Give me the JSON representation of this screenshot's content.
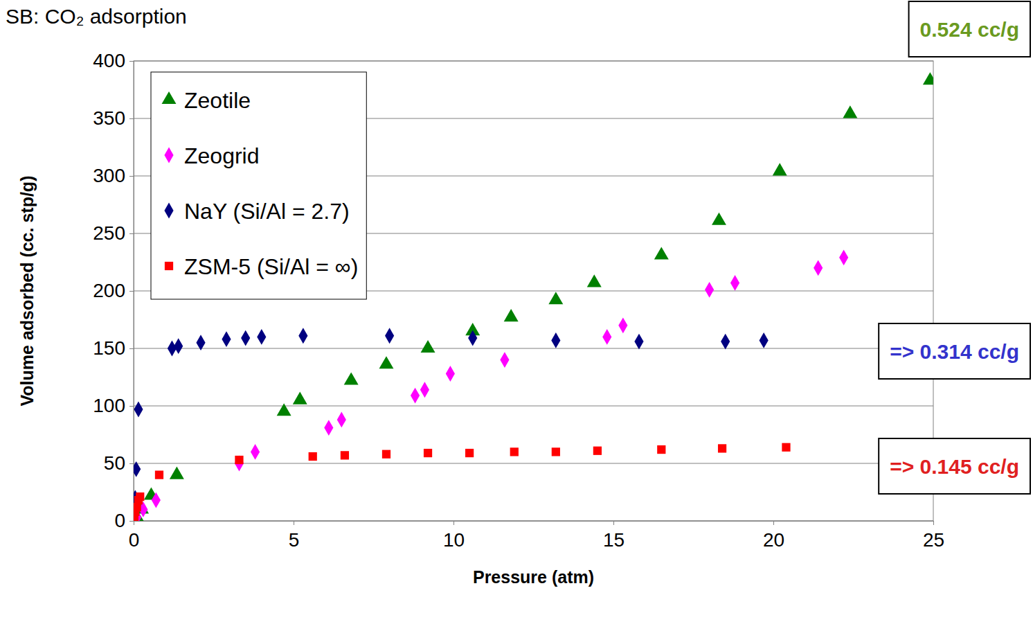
{
  "chart_data": {
    "type": "scatter",
    "title": "SB: CO₂ adsorption",
    "x_label": "Pressure (atm)",
    "y_label": "Volume adsorbed (cc. stp/g)",
    "xlim": [
      0,
      25
    ],
    "xticks": [
      0,
      5,
      10,
      15,
      20,
      25
    ],
    "ylim": [
      0,
      400
    ],
    "yticks": [
      0,
      50,
      100,
      150,
      200,
      250,
      300,
      350,
      400
    ],
    "grid": true,
    "legend": "upper left",
    "series": [
      {
        "name": "Zeotile",
        "color": "#008000",
        "marker": "triangle",
        "x": [
          0.1,
          0.25,
          0.55,
          1.35,
          4.7,
          5.2,
          6.8,
          7.9,
          9.2,
          10.6,
          11.8,
          13.2,
          14.4,
          16.5,
          18.3,
          20.2,
          22.4,
          24.9
        ],
        "values": [
          3,
          10,
          22,
          40,
          95,
          105,
          122,
          136,
          150,
          165,
          177,
          192,
          207,
          231,
          261,
          304,
          354,
          383
        ]
      },
      {
        "name": "Zeogrid",
        "color": "#ff00ff",
        "marker": "diamond",
        "x": [
          0.1,
          0.3,
          0.7,
          3.3,
          3.8,
          6.1,
          6.5,
          8.8,
          9.1,
          9.9,
          11.6,
          14.8,
          15.3,
          18.0,
          18.8,
          21.4,
          22.2
        ],
        "values": [
          3,
          10,
          18,
          50,
          60,
          81,
          88,
          109,
          114,
          128,
          140,
          160,
          170,
          201,
          207,
          220,
          229
        ]
      },
      {
        "name": "NaY (Si/Al = 2.7)",
        "color": "#000080",
        "marker": "diamond",
        "x": [
          0.02,
          0.05,
          0.08,
          0.15,
          1.2,
          1.4,
          2.1,
          2.9,
          3.5,
          4.0,
          5.3,
          8.0,
          10.6,
          13.2,
          15.8,
          18.5,
          19.7
        ],
        "values": [
          5,
          20,
          45,
          97,
          150,
          152,
          155,
          158,
          159,
          160,
          161,
          161,
          159,
          157,
          156,
          156,
          157
        ]
      },
      {
        "name": "ZSM-5 (Si/Al = ∞)",
        "color": "#ff0000",
        "marker": "square",
        "x": [
          0.02,
          0.05,
          0.1,
          0.15,
          0.2,
          0.8,
          3.3,
          5.6,
          6.6,
          7.9,
          9.2,
          10.5,
          11.9,
          13.2,
          14.5,
          16.5,
          18.4,
          20.4
        ],
        "values": [
          3,
          8,
          12,
          18,
          21,
          40,
          53,
          56,
          57,
          58,
          59,
          59,
          60,
          60,
          61,
          62,
          63,
          64
        ]
      }
    ],
    "annotations": [
      {
        "text": "0.524 cc/g",
        "color": "#6a9a1f"
      },
      {
        "text": "=> 0.314 cc/g",
        "color": "#3333cc"
      },
      {
        "text": "=> 0.145 cc/g",
        "color": "#e02020"
      }
    ]
  }
}
